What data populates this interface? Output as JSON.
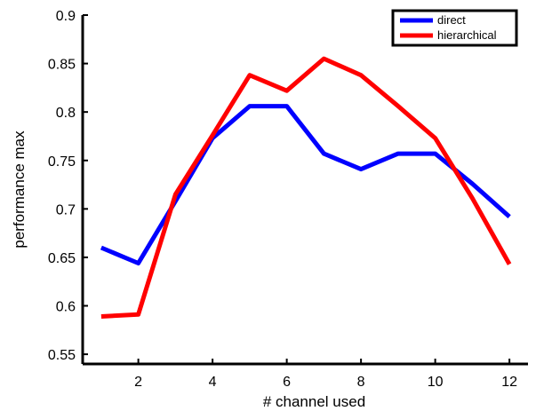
{
  "chart_data": {
    "type": "line",
    "xlabel": "# channel used",
    "ylabel": "performance max",
    "xlim": [
      0.5,
      12.5
    ],
    "ylim": [
      0.54,
      0.9
    ],
    "xticks": [
      2,
      4,
      6,
      8,
      10,
      12
    ],
    "yticks": [
      0.55,
      0.6,
      0.65,
      0.7,
      0.75,
      0.8,
      0.85,
      0.9
    ],
    "ytick_labels": [
      "0.55",
      "0.6",
      "0.65",
      "0.7",
      "0.75",
      "0.8",
      "0.85",
      "0.9"
    ],
    "grid": false,
    "legend_position": "top-right",
    "x": [
      1,
      2,
      3,
      4,
      5,
      6,
      7,
      8,
      9,
      10,
      11,
      12
    ],
    "series": [
      {
        "name": "direct",
        "color": "#0000ff",
        "values": [
          0.66,
          0.644,
          0.708,
          0.773,
          0.806,
          0.806,
          0.757,
          0.741,
          0.757,
          0.757,
          0.726,
          0.692
        ]
      },
      {
        "name": "hierarchical",
        "color": "#ff0000",
        "values": [
          0.589,
          0.591,
          0.715,
          0.776,
          0.838,
          0.822,
          0.855,
          0.838,
          0.806,
          0.773,
          0.711,
          0.643
        ]
      }
    ]
  }
}
